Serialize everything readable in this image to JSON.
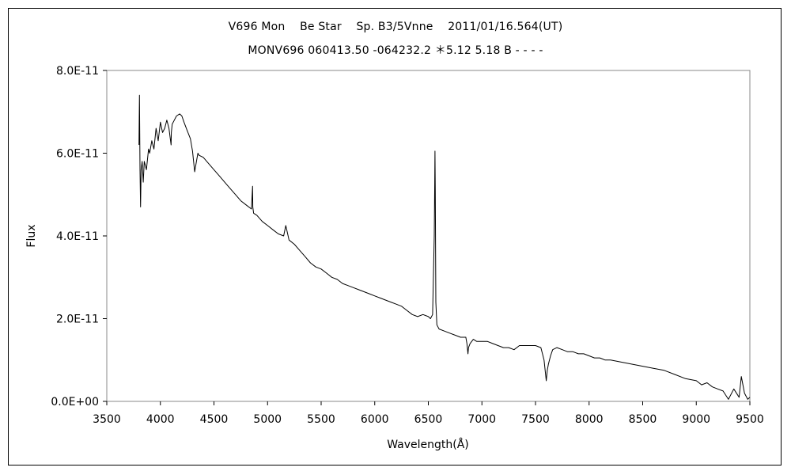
{
  "chart_data": {
    "type": "line",
    "title": "V696 Mon    Be Star    Sp. B3/5Vnne    2011/01/16.564(UT)",
    "subtitle": "MONV696 060413.50 -064232.2 ＊5.12 5.18 B - - - -",
    "xlabel": "Wavelength(Å)",
    "ylabel": "Flux",
    "xlim": [
      3500,
      9500
    ],
    "ylim": [
      0,
      8e-11
    ],
    "x_ticks": [
      "3500",
      "4000",
      "4500",
      "5000",
      "5500",
      "6000",
      "6500",
      "7000",
      "7500",
      "8000",
      "8500",
      "9000",
      "9500"
    ],
    "y_ticks": [
      "0.0E+00",
      "2.0E-11",
      "4.0E-11",
      "6.0E-11",
      "8.0E-11"
    ],
    "grid": false,
    "legend": "none",
    "series": [
      {
        "name": "",
        "color": "#000000",
        "x": [
          3800,
          3805,
          3810,
          3815,
          3820,
          3830,
          3840,
          3850,
          3870,
          3890,
          3900,
          3920,
          3940,
          3960,
          3980,
          4000,
          4020,
          4040,
          4060,
          4080,
          4100,
          4102,
          4110,
          4130,
          4150,
          4180,
          4200,
          4220,
          4250,
          4280,
          4300,
          4320,
          4340,
          4350,
          4360,
          4400,
          4450,
          4500,
          4550,
          4600,
          4650,
          4700,
          4750,
          4800,
          4850,
          4860,
          4862,
          4870,
          4900,
          4950,
          5000,
          5050,
          5100,
          5150,
          5170,
          5200,
          5250,
          5300,
          5350,
          5400,
          5450,
          5500,
          5550,
          5600,
          5650,
          5700,
          5750,
          5800,
          5850,
          5900,
          5950,
          6000,
          6050,
          6100,
          6150,
          6200,
          6250,
          6300,
          6350,
          6400,
          6450,
          6500,
          6520,
          6540,
          6555,
          6560,
          6562,
          6565,
          6570,
          6580,
          6600,
          6650,
          6700,
          6750,
          6800,
          6850,
          6860,
          6870,
          6875,
          6890,
          6920,
          6950,
          7000,
          7050,
          7100,
          7150,
          7200,
          7250,
          7300,
          7350,
          7400,
          7450,
          7500,
          7550,
          7580,
          7600,
          7610,
          7620,
          7640,
          7660,
          7700,
          7750,
          7800,
          7850,
          7900,
          7950,
          8000,
          8050,
          8100,
          8150,
          8200,
          8300,
          8400,
          8500,
          8600,
          8700,
          8800,
          8900,
          9000,
          9050,
          9100,
          9150,
          9200,
          9250,
          9300,
          9350,
          9400,
          9420,
          9450,
          9480,
          9500
        ],
        "y": [
          6.2e-11,
          7.4e-11,
          5.6e-11,
          4.7e-11,
          5.6e-11,
          5.8e-11,
          5.3e-11,
          5.8e-11,
          5.6e-11,
          6.1e-11,
          6e-11,
          6.3e-11,
          6.1e-11,
          6.6e-11,
          6.3e-11,
          6.75e-11,
          6.5e-11,
          6.6e-11,
          6.8e-11,
          6.6e-11,
          6.2e-11,
          6.5e-11,
          6.7e-11,
          6.8e-11,
          6.9e-11,
          6.95e-11,
          6.9e-11,
          6.75e-11,
          6.55e-11,
          6.35e-11,
          6.05e-11,
          5.55e-11,
          5.85e-11,
          6e-11,
          5.95e-11,
          5.9e-11,
          5.75e-11,
          5.6e-11,
          5.45e-11,
          5.3e-11,
          5.15e-11,
          5e-11,
          4.85e-11,
          4.75e-11,
          4.65e-11,
          5.2e-11,
          4.7e-11,
          4.55e-11,
          4.5e-11,
          4.35e-11,
          4.25e-11,
          4.15e-11,
          4.05e-11,
          4e-11,
          4.25e-11,
          3.9e-11,
          3.8e-11,
          3.65e-11,
          3.5e-11,
          3.35e-11,
          3.25e-11,
          3.2e-11,
          3.1e-11,
          3e-11,
          2.95e-11,
          2.85e-11,
          2.8e-11,
          2.75e-11,
          2.7e-11,
          2.65e-11,
          2.6e-11,
          2.55e-11,
          2.5e-11,
          2.45e-11,
          2.4e-11,
          2.35e-11,
          2.3e-11,
          2.2e-11,
          2.1e-11,
          2.05e-11,
          2.1e-11,
          2.05e-11,
          2e-11,
          2.1e-11,
          4e-11,
          5.3e-11,
          6.05e-11,
          5.1e-11,
          2.4e-11,
          1.85e-11,
          1.75e-11,
          1.7e-11,
          1.65e-11,
          1.6e-11,
          1.55e-11,
          1.55e-11,
          1.4e-11,
          1.15e-11,
          1.3e-11,
          1.4e-11,
          1.5e-11,
          1.45e-11,
          1.45e-11,
          1.45e-11,
          1.4e-11,
          1.35e-11,
          1.3e-11,
          1.3e-11,
          1.25e-11,
          1.35e-11,
          1.35e-11,
          1.35e-11,
          1.35e-11,
          1.3e-11,
          1e-11,
          5e-12,
          7.5e-12,
          9e-12,
          1.1e-11,
          1.25e-11,
          1.3e-11,
          1.25e-11,
          1.2e-11,
          1.2e-11,
          1.15e-11,
          1.15e-11,
          1.1e-11,
          1.05e-11,
          1.05e-11,
          1e-11,
          1e-11,
          9.5e-12,
          9e-12,
          8.5e-12,
          8e-12,
          7.5e-12,
          6.5e-12,
          5.5e-12,
          5e-12,
          4e-12,
          4.5e-12,
          3.5e-12,
          3e-12,
          2.5e-12,
          5e-13,
          3e-12,
          1e-12,
          6e-12,
          2e-12,
          5e-13,
          1e-12
        ]
      }
    ]
  }
}
